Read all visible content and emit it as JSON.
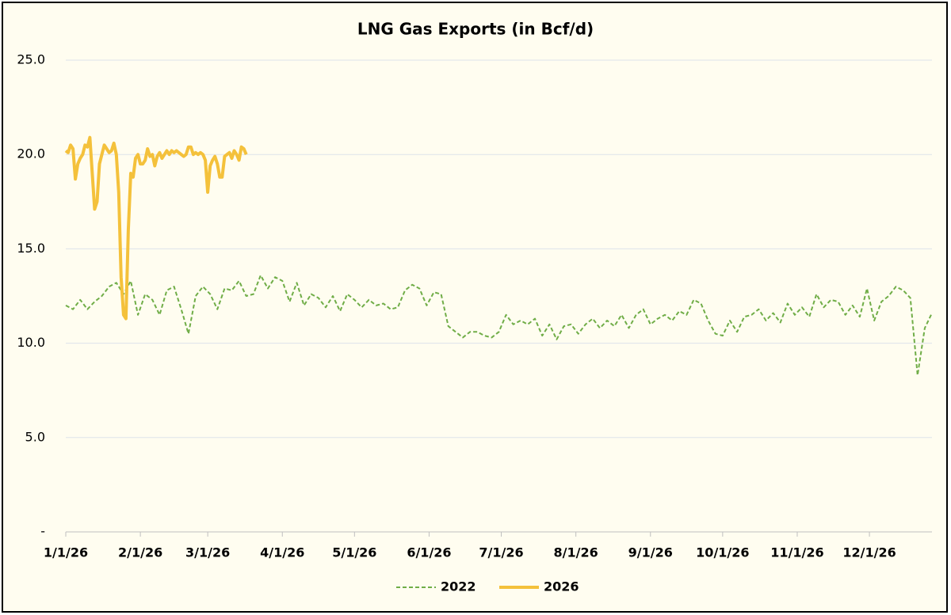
{
  "chart_data": {
    "type": "line",
    "title": "LNG Gas Exports (in Bcf/d)",
    "xlim": [
      0,
      360
    ],
    "ylim": [
      0,
      25
    ],
    "yticks": [
      {
        "value": 0,
        "label": "-"
      },
      {
        "value": 5,
        "label": "5.0"
      },
      {
        "value": 10,
        "label": "10.0"
      },
      {
        "value": 15,
        "label": "15.0"
      },
      {
        "value": 20,
        "label": "20.0"
      },
      {
        "value": 25,
        "label": "25.0"
      }
    ],
    "xticks": [
      {
        "value": 0,
        "label": "1/1/26"
      },
      {
        "value": 31,
        "label": "2/1/26"
      },
      {
        "value": 59,
        "label": "3/1/26"
      },
      {
        "value": 90,
        "label": "4/1/26"
      },
      {
        "value": 120,
        "label": "5/1/26"
      },
      {
        "value": 151,
        "label": "6/1/26"
      },
      {
        "value": 181,
        "label": "7/1/26"
      },
      {
        "value": 212,
        "label": "8/1/26"
      },
      {
        "value": 243,
        "label": "9/1/26"
      },
      {
        "value": 273,
        "label": "10/1/26"
      },
      {
        "value": 304,
        "label": "11/1/26"
      },
      {
        "value": 334,
        "label": "12/1/26"
      }
    ],
    "grid": true,
    "legend": "bottom",
    "series": [
      {
        "name": "2022",
        "color": "#70ad47",
        "dashed": true,
        "x": [
          0,
          3,
          6,
          9,
          12,
          15,
          18,
          21,
          24,
          27,
          30,
          33,
          36,
          39,
          42,
          45,
          48,
          51,
          54,
          57,
          60,
          63,
          66,
          69,
          72,
          75,
          78,
          81,
          84,
          87,
          90,
          93,
          96,
          99,
          102,
          105,
          108,
          111,
          114,
          117,
          120,
          123,
          126,
          129,
          132,
          135,
          138,
          141,
          144,
          147,
          150,
          153,
          156,
          159,
          162,
          165,
          168,
          171,
          174,
          177,
          180,
          183,
          186,
          189,
          192,
          195,
          198,
          201,
          204,
          207,
          210,
          213,
          216,
          219,
          222,
          225,
          228,
          231,
          234,
          237,
          240,
          243,
          246,
          249,
          252,
          255,
          258,
          261,
          264,
          267,
          270,
          273,
          276,
          279,
          282,
          285,
          288,
          291,
          294,
          297,
          300,
          303,
          306,
          309,
          312,
          315,
          318,
          321,
          324,
          327,
          330,
          333,
          336,
          339,
          342,
          345,
          348,
          351,
          354,
          357,
          360
        ],
        "values": [
          12.0,
          11.8,
          12.3,
          11.8,
          12.2,
          12.5,
          13.0,
          13.2,
          12.6,
          13.3,
          11.5,
          12.6,
          12.3,
          11.5,
          12.8,
          13.0,
          11.8,
          10.5,
          12.5,
          13.0,
          12.6,
          11.8,
          12.9,
          12.8,
          13.3,
          12.5,
          12.6,
          13.6,
          12.9,
          13.5,
          13.3,
          12.2,
          13.2,
          12.0,
          12.6,
          12.4,
          11.9,
          12.5,
          11.7,
          12.6,
          12.3,
          11.9,
          12.3,
          12.0,
          12.1,
          11.8,
          11.9,
          12.8,
          13.1,
          12.9,
          12.0,
          12.7,
          12.6,
          10.9,
          10.6,
          10.3,
          10.6,
          10.6,
          10.4,
          10.3,
          10.6,
          11.5,
          11.0,
          11.2,
          11.0,
          11.3,
          10.4,
          11.0,
          10.2,
          10.9,
          11.0,
          10.5,
          11.0,
          11.3,
          10.8,
          11.2,
          10.9,
          11.5,
          10.8,
          11.5,
          11.8,
          11.0,
          11.3,
          11.5,
          11.2,
          11.7,
          11.5,
          12.3,
          12.1,
          11.2,
          10.5,
          10.4,
          11.2,
          10.6,
          11.4,
          11.5,
          11.8,
          11.2,
          11.6,
          11.1,
          12.1,
          11.5,
          11.9,
          11.4,
          12.6,
          11.9,
          12.3,
          12.2,
          11.5,
          12.0,
          11.4,
          12.9,
          11.2,
          12.2,
          12.5,
          13.0,
          12.8,
          12.4,
          8.3,
          10.8,
          11.6
        ]
      },
      {
        "name": "2026",
        "color": "#f4c13b",
        "dashed": false,
        "x": [
          0,
          1,
          2,
          3,
          4,
          5,
          6,
          7,
          8,
          9,
          10,
          11,
          12,
          13,
          14,
          15,
          16,
          17,
          18,
          19,
          20,
          21,
          22,
          23,
          24,
          25,
          26,
          27,
          28,
          29,
          30,
          31,
          32,
          33,
          34,
          35,
          36,
          37,
          38,
          39,
          40,
          41,
          42,
          43,
          44,
          45,
          46,
          47,
          48,
          49,
          50,
          51,
          52,
          53,
          54,
          55,
          56,
          57,
          58,
          59,
          60,
          61,
          62,
          63,
          64,
          65,
          66,
          67,
          68,
          69,
          70,
          71,
          72,
          73,
          74,
          75
        ],
        "values": [
          20.2,
          20.1,
          20.5,
          20.3,
          18.7,
          19.5,
          19.8,
          20.0,
          20.5,
          20.4,
          20.9,
          19.0,
          17.1,
          17.5,
          19.5,
          20.0,
          20.5,
          20.3,
          20.1,
          20.2,
          20.6,
          20.0,
          18.0,
          13.5,
          11.5,
          11.3,
          16.0,
          19.0,
          18.8,
          19.8,
          20.0,
          19.5,
          19.5,
          19.7,
          20.3,
          19.9,
          20.0,
          19.4,
          19.9,
          20.1,
          19.8,
          20.0,
          20.2,
          20.0,
          20.2,
          20.1,
          20.2,
          20.1,
          20.0,
          19.9,
          20.0,
          20.4,
          20.4,
          20.0,
          20.1,
          20.0,
          20.1,
          20.0,
          19.7,
          18.0,
          19.4,
          19.7,
          19.9,
          19.5,
          18.8,
          18.8,
          19.9,
          20.0,
          20.1,
          19.8,
          20.2,
          20.0,
          19.7,
          20.4,
          20.3,
          20.0
        ]
      }
    ]
  }
}
